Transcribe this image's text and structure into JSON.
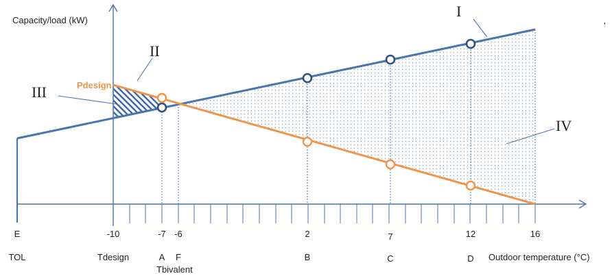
{
  "chart_data": {
    "type": "line",
    "ylabel": "Capacity/load (kW)",
    "xlabel": "Outdoor temperature (°C)",
    "series": [
      {
        "name": "I",
        "color": "#4a74b0",
        "x": [
          -25,
          2,
          7,
          12,
          16
        ],
        "y": [
          4.2,
          8.25,
          9.0,
          9.75,
          10.35
        ]
      },
      {
        "name": "II",
        "label": "Pdesign",
        "color": "#f0944a",
        "x": [
          -10,
          -7,
          2,
          7,
          12,
          16
        ],
        "y": [
          7.7,
          6.82,
          4.15,
          2.67,
          1.2,
          0.0
        ]
      }
    ],
    "x_ticks": [
      {
        "value": "E",
        "below": "TOL"
      },
      {
        "value": "-10",
        "below": "Tdesign"
      },
      {
        "value": "-7",
        "below": "A"
      },
      {
        "value": "-6",
        "below": "F"
      },
      {
        "value": "2",
        "below": "B"
      },
      {
        "value": "7",
        "below": "C"
      },
      {
        "value": "12",
        "below": "D"
      },
      {
        "value": "16",
        "below": ""
      }
    ],
    "extra_labels": {
      "bivalent": "Tbivalent"
    },
    "region_labels": [
      "III",
      "IV"
    ],
    "annotation": "'"
  }
}
